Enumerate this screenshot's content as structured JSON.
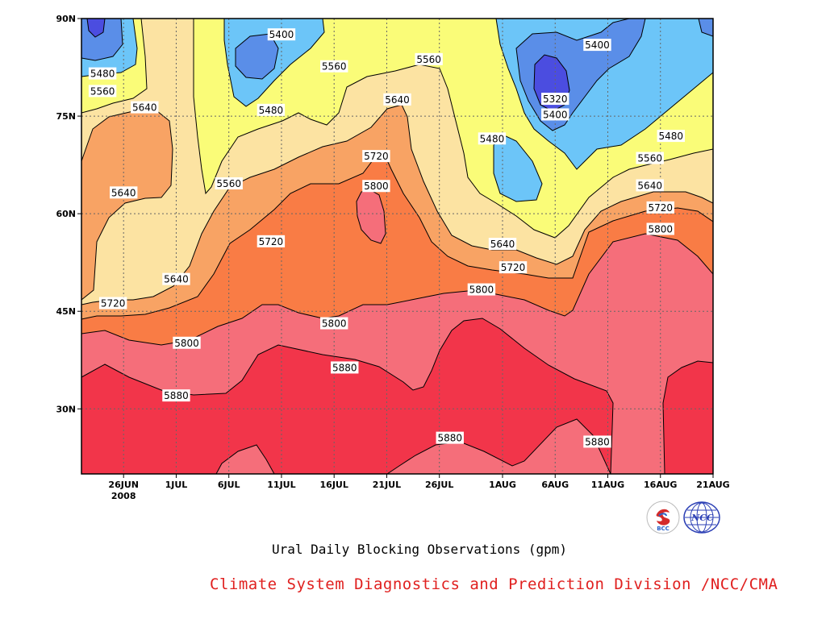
{
  "caption": "Ural Daily Blocking Observations (gpm)",
  "credit": "Climate System Diagnostics and Prediction Division /NCC/CMA",
  "logos": {
    "bcc_text": "BCC",
    "ncc_text": "NCC"
  },
  "chart_data": {
    "type": "contour",
    "x_ticks": [
      "26JUN",
      "1JUL",
      "6JUL",
      "11JUL",
      "16JUL",
      "21JUL",
      "26JUL",
      "1AUG",
      "6AUG",
      "11AUG",
      "16AUG",
      "21AUG"
    ],
    "x_year_label": "2008",
    "y_ticks": [
      "30N",
      "45N",
      "60N",
      "75N",
      "90N"
    ],
    "xlim": [
      "2008-06-22",
      "2008-08-21"
    ],
    "ylim": [
      20,
      90
    ],
    "levels": [
      5320,
      5400,
      5480,
      5560,
      5640,
      5720,
      5800,
      5880
    ],
    "colors": {
      "5320": "#4b4de0",
      "5400": "#5a8ee8",
      "5480": "#6cc5f8",
      "5560": "#fafc78",
      "5640": "#fce3a2",
      "5720": "#f8a364",
      "5800": "#f97c45",
      "5880": "#f56e7a",
      "max": "#f2354a"
    },
    "contour_labels": [
      {
        "text": "5400",
        "date": "2008-07-11",
        "lat": 87.5
      },
      {
        "text": "5480",
        "date": "2008-06-24",
        "lat": 81.5
      },
      {
        "text": "5560",
        "date": "2008-06-24",
        "lat": 78.8
      },
      {
        "text": "5640",
        "date": "2008-06-28",
        "lat": 76.3
      },
      {
        "text": "5640",
        "date": "2008-06-26",
        "lat": 63.2
      },
      {
        "text": "5480",
        "date": "2008-07-10",
        "lat": 75.9
      },
      {
        "text": "5560",
        "date": "2008-07-06",
        "lat": 64.6
      },
      {
        "text": "5560",
        "date": "2008-07-16",
        "lat": 82.6
      },
      {
        "text": "5560",
        "date": "2008-07-25",
        "lat": 83.7
      },
      {
        "text": "5640",
        "date": "2008-07-22",
        "lat": 77.5
      },
      {
        "text": "5720",
        "date": "2008-07-20",
        "lat": 68.8
      },
      {
        "text": "5800",
        "date": "2008-07-20",
        "lat": 64.2
      },
      {
        "text": "5720",
        "date": "2008-07-10",
        "lat": 55.7
      },
      {
        "text": "5640",
        "date": "2008-07-01",
        "lat": 49.9
      },
      {
        "text": "5720",
        "date": "2008-06-25",
        "lat": 46.2
      },
      {
        "text": "5800",
        "date": "2008-07-02",
        "lat": 40.1
      },
      {
        "text": "5880",
        "date": "2008-07-01",
        "lat": 32.0
      },
      {
        "text": "5800",
        "date": "2008-07-16",
        "lat": 43.1
      },
      {
        "text": "5880",
        "date": "2008-07-17",
        "lat": 36.3
      },
      {
        "text": "5880",
        "date": "2008-07-27",
        "lat": 25.5
      },
      {
        "text": "5800",
        "date": "2008-07-30",
        "lat": 48.3
      },
      {
        "text": "5720",
        "date": "2008-08-02",
        "lat": 51.7
      },
      {
        "text": "5640",
        "date": "2008-08-01",
        "lat": 55.3
      },
      {
        "text": "5480",
        "date": "2008-07-31",
        "lat": 71.5
      },
      {
        "text": "5320",
        "date": "2008-08-06",
        "lat": 77.6
      },
      {
        "text": "5400",
        "date": "2008-08-06",
        "lat": 75.2
      },
      {
        "text": "5400",
        "date": "2008-08-10",
        "lat": 85.9
      },
      {
        "text": "5880",
        "date": "2008-08-10",
        "lat": 24.9
      },
      {
        "text": "5480",
        "date": "2008-08-17",
        "lat": 71.9
      },
      {
        "text": "5560",
        "date": "2008-08-15",
        "lat": 68.5
      },
      {
        "text": "5640",
        "date": "2008-08-15",
        "lat": 64.3
      },
      {
        "text": "5720",
        "date": "2008-08-16",
        "lat": 60.9
      },
      {
        "text": "5800",
        "date": "2008-08-16",
        "lat": 57.6
      }
    ]
  }
}
